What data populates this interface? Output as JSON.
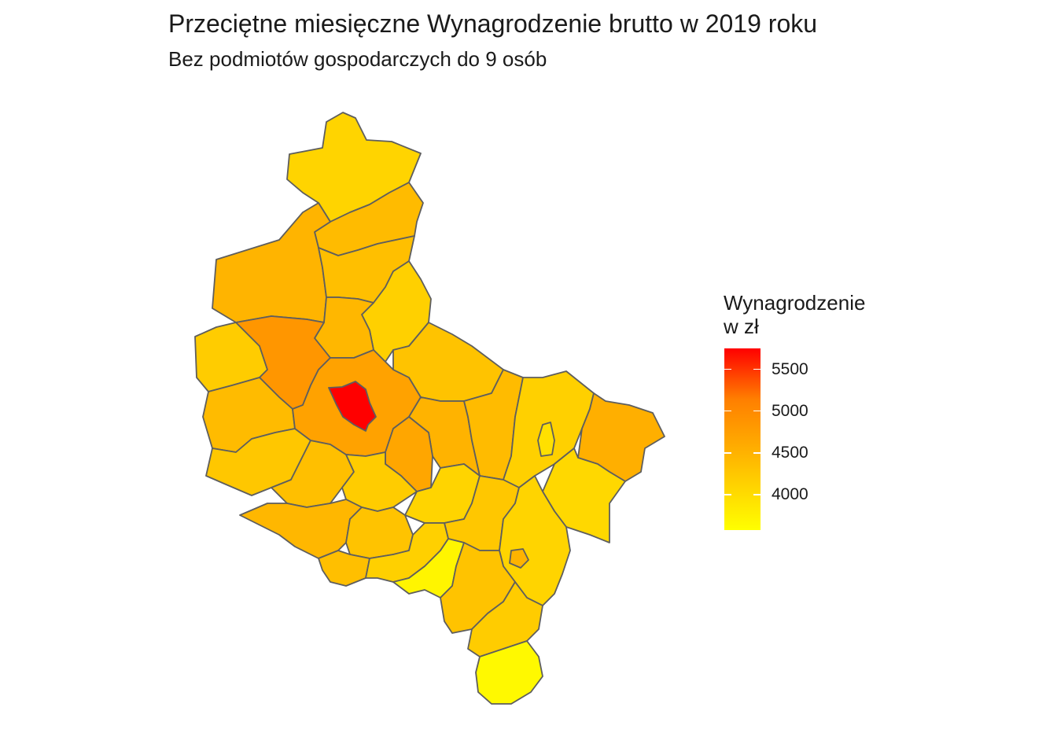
{
  "title": "Przeciętne miesięczne Wynagrodzenie brutto w 2019 roku",
  "subtitle": "Bez podmiotów gospodarczych do 9 osób",
  "legend": {
    "title_line1": "Wynagrodzenie",
    "title_line2": "w zł",
    "min": 3580,
    "max": 5750,
    "breaks": [
      {
        "value": 4000,
        "label": "4000"
      },
      {
        "value": 4500,
        "label": "4500"
      },
      {
        "value": 5000,
        "label": "5000"
      },
      {
        "value": 5500,
        "label": "5500"
      }
    ],
    "colors": {
      "low": "#ffff00",
      "mid_low": "#ffd200",
      "mid": "#ffa500",
      "mid_high": "#ff7f00",
      "high": "#ff0000"
    }
  },
  "map": {
    "border_color": "#5e5e5e",
    "regions": [
      {
        "id": "zlotowski",
        "value": 4100
      },
      {
        "id": "pilski",
        "value": 4400
      },
      {
        "id": "wagrowiecki",
        "value": 4150
      },
      {
        "id": "chodzieski",
        "value": 4350
      },
      {
        "id": "czarnkowsko-trzcianecki",
        "value": 4480
      },
      {
        "id": "obornicki",
        "value": 4450
      },
      {
        "id": "miedzychodzki",
        "value": 4200
      },
      {
        "id": "szamotulski",
        "value": 4850
      },
      {
        "id": "gnieznienski",
        "value": 4300
      },
      {
        "id": "poznanski",
        "value": 4700
      },
      {
        "id": "miasto-poznan",
        "value": 5750
      },
      {
        "id": "nowotomyski",
        "value": 4400
      },
      {
        "id": "wolsztynski",
        "value": 4250
      },
      {
        "id": "grodziski",
        "value": 4350
      },
      {
        "id": "koscianski",
        "value": 4200
      },
      {
        "id": "sremski",
        "value": 4650
      },
      {
        "id": "sredzki",
        "value": 4500
      },
      {
        "id": "wrzesinski",
        "value": 4400
      },
      {
        "id": "slupecki",
        "value": 4150
      },
      {
        "id": "koninski",
        "value": 3950
      },
      {
        "id": "kolski",
        "value": 4550
      },
      {
        "id": "turecki",
        "value": 4050
      },
      {
        "id": "leszczynski",
        "value": 4450
      },
      {
        "id": "gostynski",
        "value": 4300
      },
      {
        "id": "jarocinski",
        "value": 4100
      },
      {
        "id": "pleszewski",
        "value": 4250
      },
      {
        "id": "kaliski",
        "value": 4100
      },
      {
        "id": "rawicki",
        "value": 4350
      },
      {
        "id": "krotoszynski",
        "value": 4150
      },
      {
        "id": "ostrowski",
        "value": 4300
      },
      {
        "id": "miasto-kalisz",
        "value": 4500
      },
      {
        "id": "milicki-north",
        "value": 3700
      },
      {
        "id": "ostrzeszowski",
        "value": 4200
      },
      {
        "id": "kepinski",
        "value": 4250
      },
      {
        "id": "kepno-south",
        "value": 3650
      }
    ]
  }
}
